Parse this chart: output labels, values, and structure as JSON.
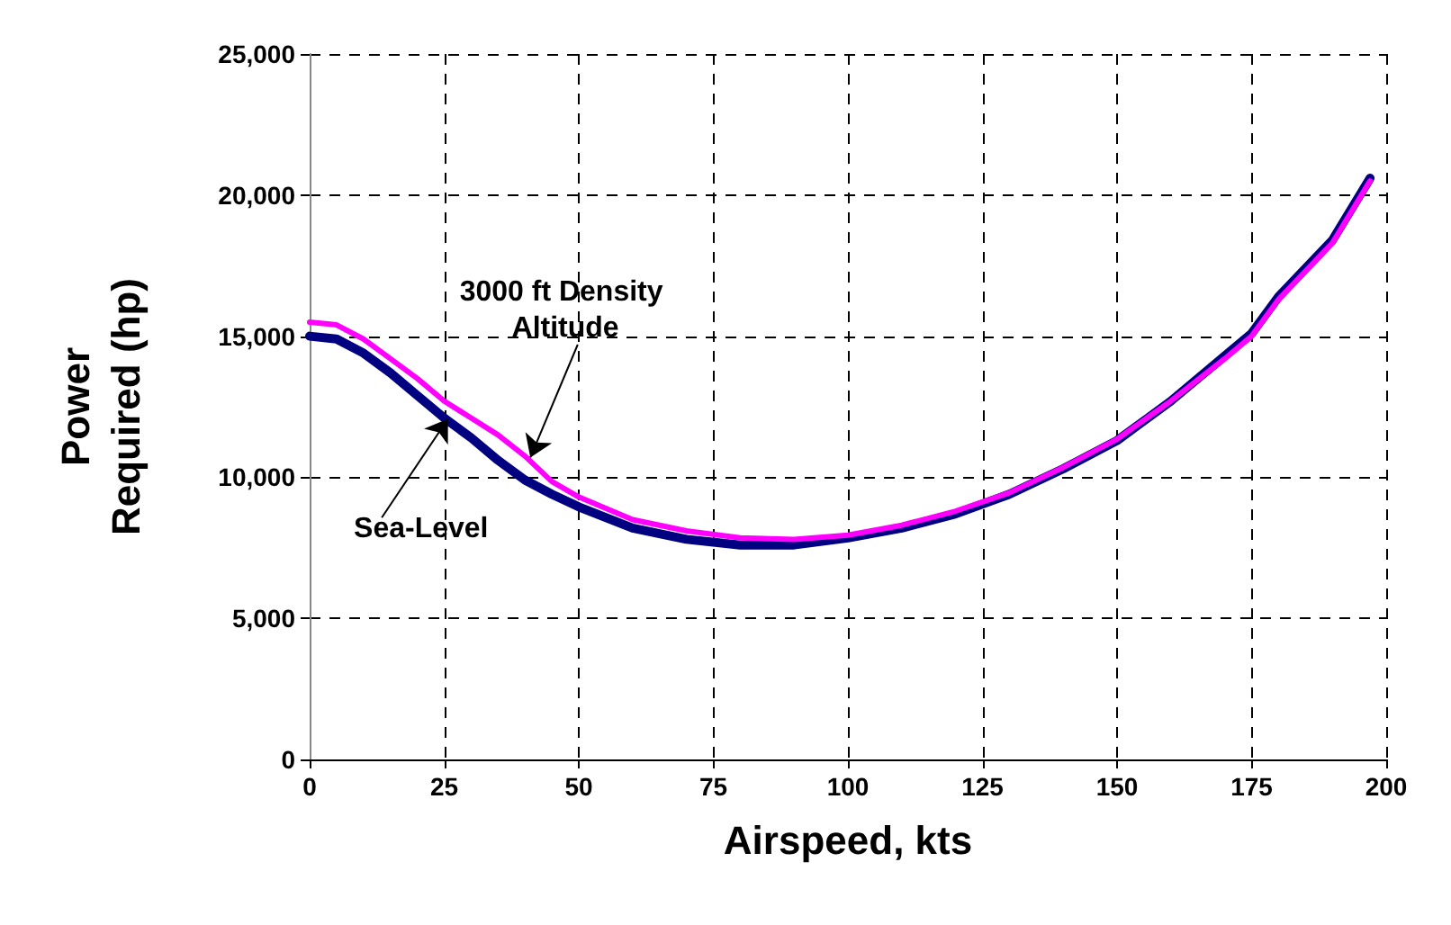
{
  "chart_data": {
    "type": "line",
    "xlabel": "Airspeed, kts",
    "ylabel": "Power Required (hp)",
    "xlim": [
      0,
      200
    ],
    "xticks": [
      0,
      25,
      50,
      75,
      100,
      125,
      150,
      175,
      200
    ],
    "ylim": [
      0,
      25000
    ],
    "yticks": [
      0,
      {
        "value": 5000,
        "label": "5,000"
      },
      {
        "value": 10000,
        "label": "10,000"
      },
      {
        "value": 15000,
        "label": "15,000"
      },
      {
        "value": 20000,
        "label": "20,000"
      },
      {
        "value": 25000,
        "label": "25,000"
      }
    ],
    "grid": true,
    "marker": "none",
    "line_style": "solid",
    "series": [
      {
        "color": "#000080",
        "x": [
          0,
          5,
          10,
          15,
          20,
          25,
          30,
          35,
          40,
          45,
          50,
          60,
          70,
          80,
          90,
          100,
          110,
          120,
          130,
          140,
          150,
          160,
          170,
          175,
          180,
          190,
          197
        ],
        "values": [
          15000,
          14900,
          14400,
          13700,
          12900,
          12100,
          11400,
          10600,
          9900,
          9400,
          8950,
          8200,
          7800,
          7600,
          7600,
          7850,
          8200,
          8700,
          9400,
          10300,
          11300,
          12700,
          14300,
          15100,
          16400,
          18400,
          20600
        ]
      },
      {
        "color": "#ff00ff",
        "x": [
          0,
          5,
          10,
          15,
          20,
          25,
          30,
          35,
          40,
          45,
          50,
          60,
          70,
          80,
          90,
          100,
          110,
          120,
          130,
          140,
          150,
          160,
          170,
          175,
          180,
          190,
          197
        ],
        "values": [
          15500,
          15400,
          14900,
          14200,
          13500,
          12700,
          12100,
          11500,
          10750,
          9850,
          9300,
          8500,
          8100,
          7850,
          7800,
          7950,
          8300,
          8800,
          9450,
          10350,
          11350,
          12700,
          14200,
          15000,
          16300,
          18300,
          20500
        ]
      }
    ],
    "annotations": [
      {
        "text": "3000 ft Density Altitude",
        "x": 41,
        "y": 10700
      },
      {
        "text": "Sea-Level",
        "x": 25.7,
        "y": 12070
      }
    ]
  }
}
